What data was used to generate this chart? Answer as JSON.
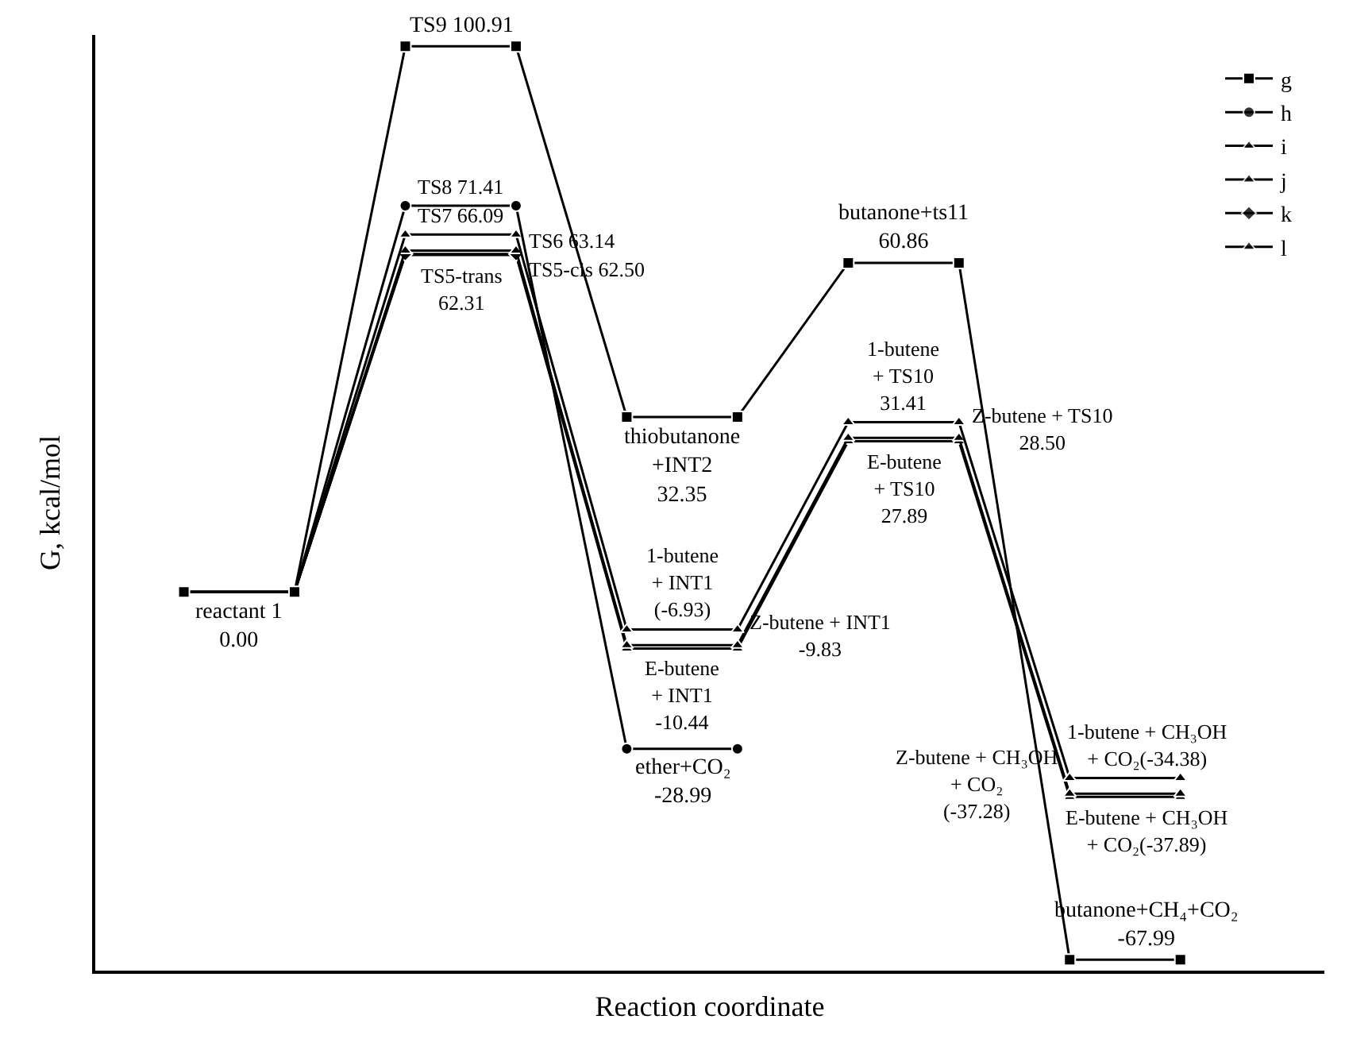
{
  "chart_data": {
    "type": "line",
    "xlabel": "Reaction coordinate",
    "ylabel": "G, kcal/mol",
    "categories": [
      null,
      null,
      null,
      null,
      null,
      null,
      null,
      null,
      null,
      null
    ],
    "ylim": [
      -70,
      103
    ],
    "tick_labels": false,
    "legend": "top right",
    "line_style": "solid",
    "series": [
      {
        "name": "g",
        "color": "#000000",
        "marker": "square",
        "values": [
          0.0,
          0.0,
          100.91,
          100.91,
          32.35,
          32.35,
          60.86,
          60.86,
          -67.99,
          -67.99
        ],
        "value_labels": [
          "reactant 1\n0.00",
          null,
          "TS9 100.91",
          null,
          "thiobutanone\n+INT2\n32.35",
          null,
          "butanone+ts11\n60.86",
          null,
          "butanone+CH₄+CO₂\n-67.99",
          null
        ]
      },
      {
        "name": "h",
        "color": "#000000",
        "marker": "circle",
        "values": [
          0.0,
          0.0,
          71.41,
          71.41,
          -28.99,
          -28.99,
          null,
          null,
          null,
          null
        ],
        "value_labels": [
          null,
          null,
          "TS8 71.41",
          null,
          "ether+CO₂\n-28.99",
          null,
          null,
          null,
          null,
          null
        ]
      },
      {
        "name": "i",
        "color": "#000000",
        "marker": "triangle",
        "values": [
          0.0,
          0.0,
          66.09,
          66.09,
          -6.93,
          -6.93,
          31.41,
          31.41,
          -34.38,
          -34.38
        ],
        "value_labels": [
          null,
          null,
          "TS7 66.09",
          null,
          "1-butene\n+ INT1\n(-6.93)",
          null,
          "1-butene\n+ TS10\n31.41",
          null,
          "1-butene + CH₃OH\n+ CO₂(-34.38)",
          null
        ]
      },
      {
        "name": "j",
        "color": "#000000",
        "marker": "triangle",
        "values": [
          0.0,
          0.0,
          63.14,
          63.14,
          -9.83,
          -9.83,
          28.5,
          28.5,
          -37.28,
          -37.28
        ],
        "value_labels": [
          null,
          null,
          null,
          "TS6 63.14",
          null,
          "Z-butene + INT1\n-9.83",
          null,
          "Z-butene + TS10\n28.50",
          "Z-butene + CH₃OH\n+ CO₂\n(-37.28)",
          null
        ]
      },
      {
        "name": "k",
        "color": "#000000",
        "marker": "diamond",
        "values": [
          0.0,
          0.0,
          62.5,
          62.5,
          null,
          null,
          null,
          null,
          null,
          null
        ],
        "value_labels": [
          null,
          null,
          null,
          "TS5-cis 62.50",
          null,
          null,
          null,
          null,
          null,
          null
        ]
      },
      {
        "name": "l",
        "color": "#000000",
        "marker": "triangle",
        "values": [
          0.0,
          0.0,
          62.31,
          62.31,
          -10.44,
          -10.44,
          27.89,
          27.89,
          -37.89,
          -37.89
        ],
        "value_labels": [
          null,
          null,
          "TS5-trans\n62.31",
          null,
          "E-butene\n+ INT1\n-10.44",
          null,
          "E-butene\n+ TS10\n27.89",
          null,
          "E-butene + CH₃OH\n+ CO₂(-37.89)",
          null
        ]
      }
    ]
  }
}
